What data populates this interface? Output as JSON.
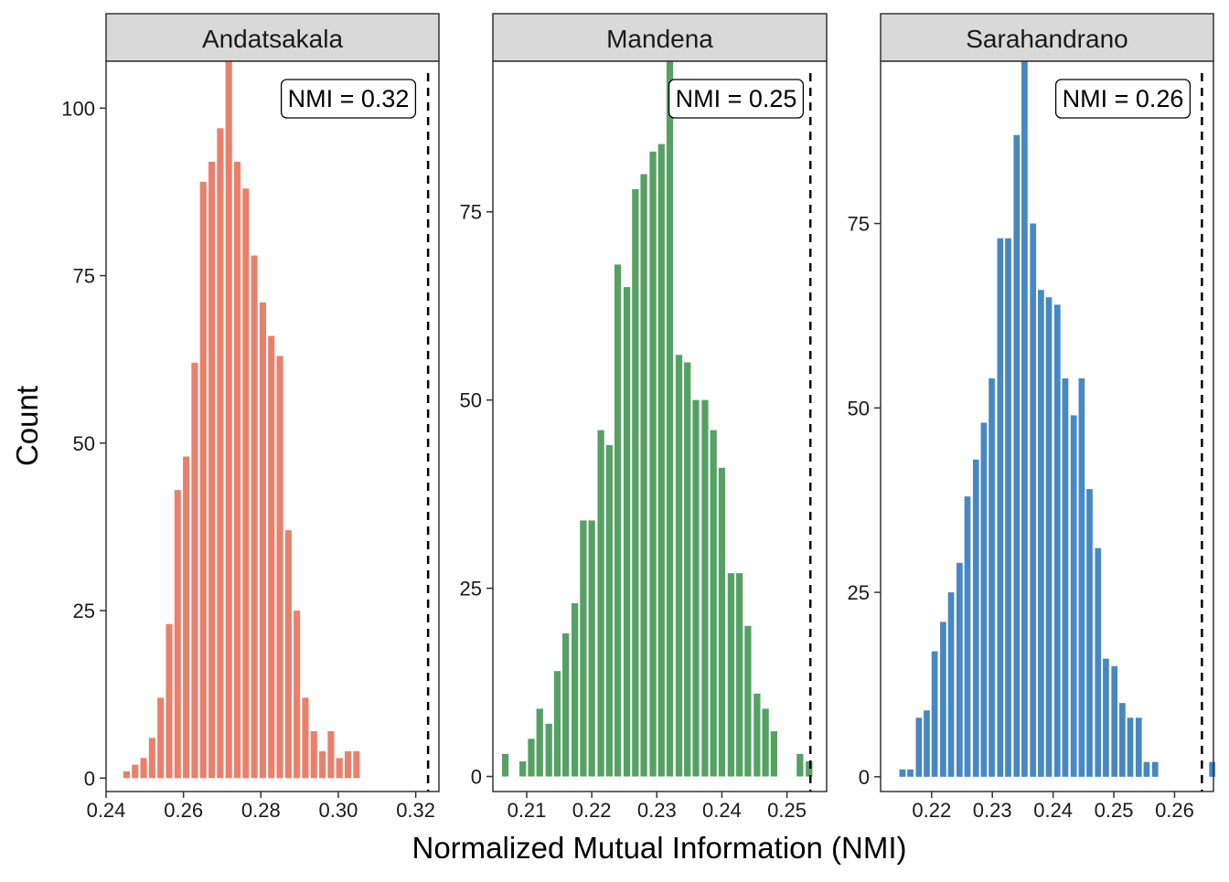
{
  "chart_data": {
    "type": "bar",
    "xlabel": "Normalized Mutual Information (NMI)",
    "ylabel": "Count",
    "panels": [
      {
        "name": "Andatsakala",
        "color": "#E8806C",
        "observed_label": "NMI = 0.32",
        "observed_value": 0.3232,
        "xlim": [
          0.24,
          0.326
        ],
        "ylim": [
          -2,
          107
        ],
        "x_ticks": [
          0.24,
          0.26,
          0.28,
          0.3,
          0.32
        ],
        "x_tick_labels": [
          "0.24",
          "0.26",
          "0.28",
          "0.30",
          "0.32"
        ],
        "y_ticks": [
          0,
          25,
          50,
          75,
          100
        ],
        "y_tick_labels": [
          "0",
          "25",
          "50",
          "75",
          "100"
        ],
        "bin_width": 0.0022,
        "x": [
          0.2453,
          0.2475,
          0.2497,
          0.2519,
          0.2541,
          0.2563,
          0.2585,
          0.2607,
          0.2629,
          0.2651,
          0.2673,
          0.2695,
          0.2717,
          0.2739,
          0.2761,
          0.2783,
          0.2805,
          0.2827,
          0.2849,
          0.2871,
          0.2893,
          0.2915,
          0.2937,
          0.2959,
          0.2981,
          0.3003,
          0.3025,
          0.3047,
          0.3069
        ],
        "values": [
          1,
          2,
          3,
          6,
          12,
          23,
          43,
          48,
          62,
          89,
          92,
          97,
          107,
          92,
          88,
          78,
          71,
          66,
          63,
          37,
          25,
          12,
          7,
          4,
          7,
          3,
          4,
          4,
          0
        ]
      },
      {
        "name": "Mandena",
        "color": "#56A064",
        "observed_label": "NMI = 0.25",
        "observed_value": 0.2536,
        "xlim": [
          0.2048,
          0.2561
        ],
        "ylim": [
          -2,
          95
        ],
        "x_ticks": [
          0.21,
          0.22,
          0.23,
          0.24,
          0.25
        ],
        "x_tick_labels": [
          "0.21",
          "0.22",
          "0.23",
          "0.24",
          "0.25"
        ],
        "y_ticks": [
          0,
          25,
          50,
          75
        ],
        "y_tick_labels": [
          "0",
          "25",
          "50",
          "75"
        ],
        "bin_width": 0.00133,
        "x": [
          0.2067,
          0.208,
          0.2094,
          0.2107,
          0.212,
          0.2134,
          0.2147,
          0.216,
          0.2174,
          0.2187,
          0.22,
          0.2214,
          0.2227,
          0.224,
          0.2254,
          0.2267,
          0.228,
          0.2294,
          0.2307,
          0.232,
          0.2334,
          0.2347,
          0.236,
          0.2374,
          0.2387,
          0.24,
          0.2414,
          0.2427,
          0.244,
          0.2454,
          0.2467,
          0.248,
          0.2494,
          0.2507,
          0.252,
          0.2534,
          0.2547
        ],
        "values": [
          3,
          0,
          2,
          5,
          9,
          7,
          14,
          19,
          23,
          34,
          34,
          46,
          44,
          68,
          65,
          78,
          80,
          83,
          84,
          95,
          56,
          55,
          50,
          50,
          46,
          41,
          27,
          27,
          20,
          11,
          9,
          6,
          0,
          0,
          3,
          2,
          0
        ]
      },
      {
        "name": "Sarahandrano",
        "color": "#4787C2",
        "observed_label": "NMI = 0.26",
        "observed_value": 0.2645,
        "xlim": [
          0.2116,
          0.2664
        ],
        "ylim": [
          -2,
          97
        ],
        "x_ticks": [
          0.22,
          0.23,
          0.24,
          0.25,
          0.26
        ],
        "x_tick_labels": [
          "0.22",
          "0.23",
          "0.24",
          "0.25",
          "0.26"
        ],
        "y_ticks": [
          0,
          25,
          50,
          75
        ],
        "y_tick_labels": [
          "0",
          "25",
          "50",
          "75"
        ],
        "bin_width": 0.00134,
        "x": [
          0.2152,
          0.2165,
          0.2179,
          0.2192,
          0.2205,
          0.2219,
          0.2232,
          0.2246,
          0.2259,
          0.2273,
          0.2286,
          0.2299,
          0.2313,
          0.2326,
          0.234,
          0.2353,
          0.2367,
          0.238,
          0.2393,
          0.2407,
          0.242,
          0.2434,
          0.2447,
          0.246,
          0.2474,
          0.2487,
          0.2501,
          0.2514,
          0.2527,
          0.2541,
          0.2554,
          0.2568,
          0.2581,
          0.2594,
          0.2608,
          0.2621,
          0.2635,
          0.2648,
          0.2662
        ],
        "values": [
          1,
          1,
          8,
          9,
          17,
          21,
          25,
          29,
          38,
          43,
          48,
          54,
          73,
          73,
          87,
          98,
          75,
          66,
          65,
          64,
          54,
          49,
          54,
          39,
          31,
          16,
          15,
          10,
          8,
          8,
          2,
          2,
          0,
          0,
          0,
          0,
          0,
          0,
          2
        ]
      }
    ]
  }
}
